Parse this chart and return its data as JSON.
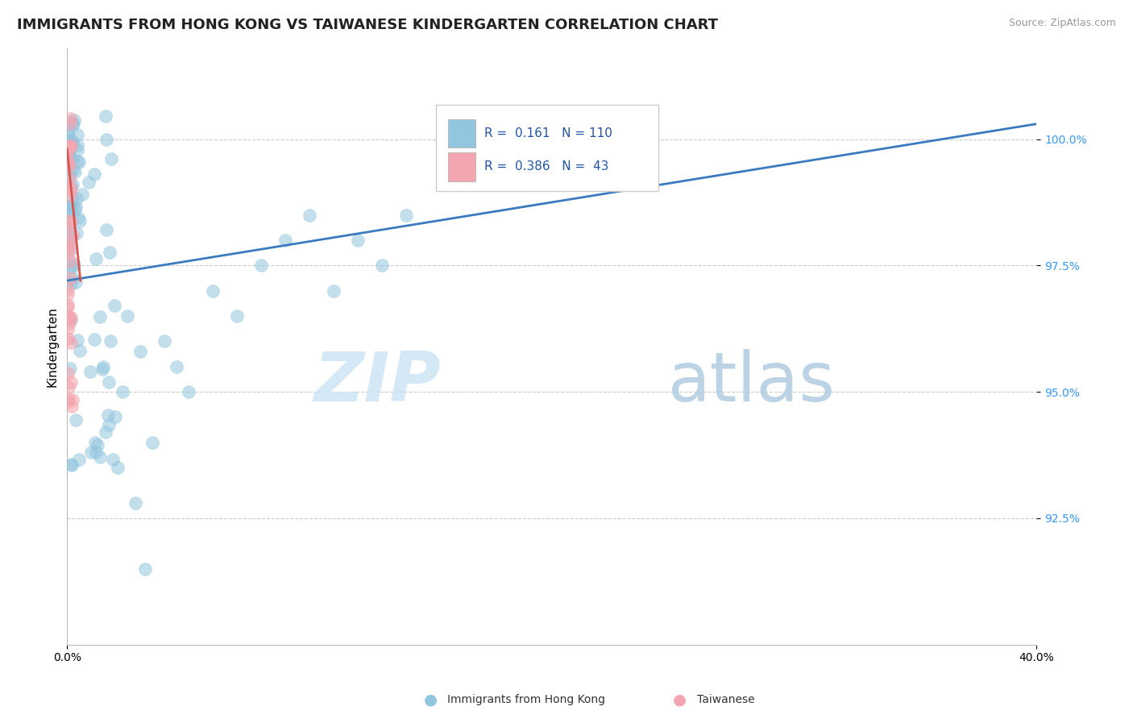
{
  "title": "IMMIGRANTS FROM HONG KONG VS TAIWANESE KINDERGARTEN CORRELATION CHART",
  "source": "Source: ZipAtlas.com",
  "ylabel_label": "Kindergarten",
  "x_min": 0.0,
  "x_max": 40.0,
  "y_min": 90.0,
  "y_max": 101.8,
  "yticks": [
    92.5,
    95.0,
    97.5,
    100.0
  ],
  "ytick_labels": [
    "92.5%",
    "95.0%",
    "97.5%",
    "100.0%"
  ],
  "blue_R": 0.161,
  "blue_N": 110,
  "pink_R": 0.386,
  "pink_N": 43,
  "blue_color": "#92c5de",
  "pink_color": "#f4a6b0",
  "blue_line_color": "#3a7bbf",
  "pink_line_color": "#d9534f",
  "legend_label_blue": "Immigrants from Hong Kong",
  "legend_label_pink": "Taiwanese",
  "legend_text_color": "#2255aa",
  "blue_trend_x0": 0.0,
  "blue_trend_y0": 97.2,
  "blue_trend_x1": 40.0,
  "blue_trend_y1": 100.3,
  "pink_trend_x0": 0.0,
  "pink_trend_y0": 99.8,
  "pink_trend_x1": 0.55,
  "pink_trend_y1": 97.2,
  "watermark_zip": "ZIP",
  "watermark_atlas": "atlas",
  "background_color": "#ffffff",
  "grid_color": "#cccccc",
  "title_fontsize": 13,
  "axis_label_fontsize": 11,
  "tick_fontsize": 10,
  "source_fontsize": 9
}
